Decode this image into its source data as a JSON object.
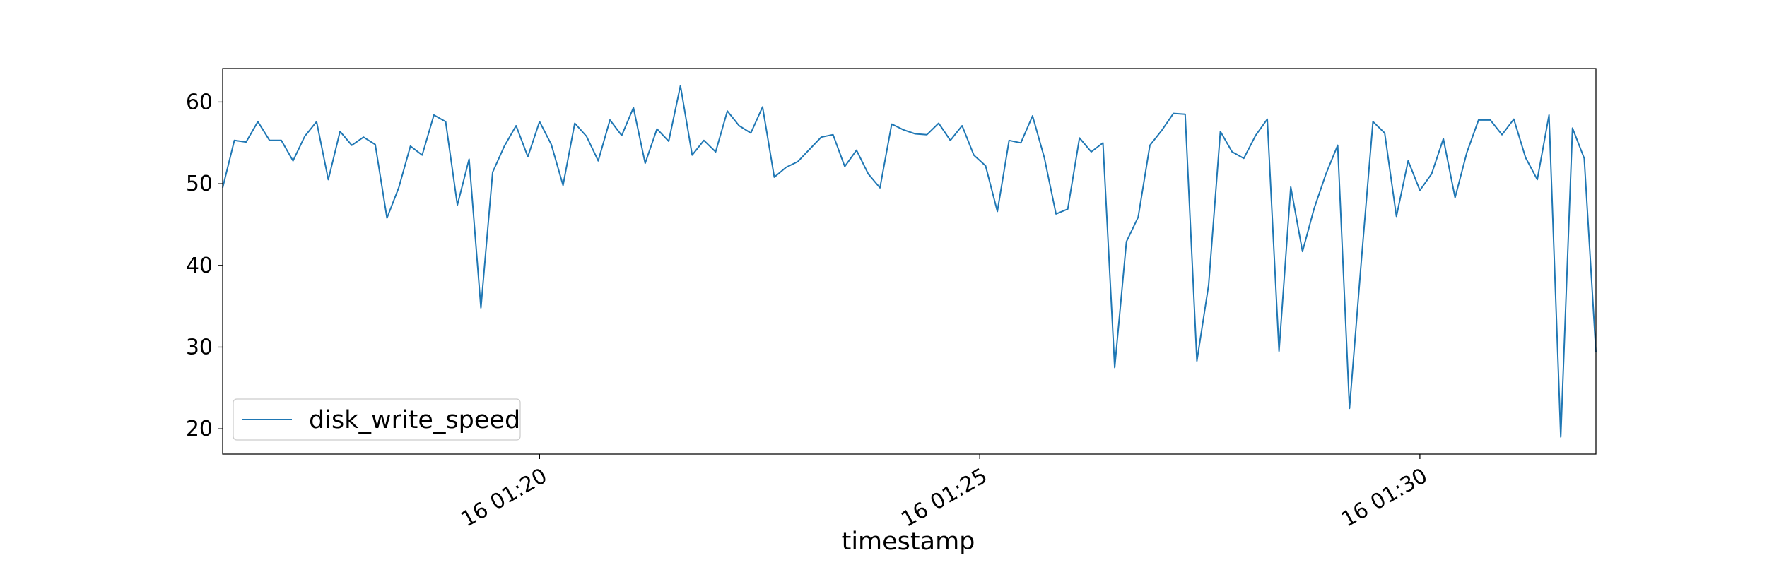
{
  "chart_data": {
    "type": "line",
    "xlabel": "timestamp",
    "x_start": "2024-01-16T01:16:24",
    "x_step_seconds": 8,
    "x_end": "2024-01-16T01:32:00",
    "x_ticks": [
      {
        "label": "16 01:20",
        "value": "2024-01-16T01:20:00"
      },
      {
        "label": "16 01:25",
        "value": "2024-01-16T01:25:00"
      },
      {
        "label": "16 01:30",
        "value": "2024-01-16T01:30:00"
      }
    ],
    "ylim": [
      16.9,
      64.1
    ],
    "y_ticks": [
      20,
      30,
      40,
      50,
      60
    ],
    "legend_position": "lower left",
    "grid": false,
    "series": [
      {
        "name": "disk_write_speed",
        "color": "#1f77b4",
        "values": [
          49.5,
          55.3,
          55.1,
          57.6,
          55.3,
          55.3,
          52.8,
          55.8,
          57.6,
          50.5,
          56.4,
          54.7,
          55.7,
          54.8,
          45.8,
          49.5,
          54.6,
          53.5,
          58.4,
          57.6,
          47.4,
          53.0,
          34.8,
          51.4,
          54.6,
          57.1,
          53.3,
          57.6,
          54.8,
          49.8,
          57.4,
          55.8,
          52.8,
          57.8,
          55.9,
          59.3,
          52.5,
          56.7,
          55.2,
          62.0,
          53.5,
          55.3,
          53.9,
          58.9,
          57.1,
          56.2,
          59.4,
          50.8,
          52.0,
          52.7,
          54.2,
          55.7,
          56.0,
          52.1,
          54.1,
          51.2,
          49.5,
          57.3,
          56.6,
          56.1,
          56.0,
          57.4,
          55.3,
          57.1,
          53.5,
          52.2,
          46.6,
          55.3,
          55.0,
          58.3,
          53.2,
          46.3,
          46.9,
          55.6,
          53.9,
          55.0,
          27.5,
          42.9,
          45.9,
          54.7,
          56.5,
          58.6,
          58.5,
          28.3,
          37.6,
          56.4,
          53.9,
          53.1,
          55.9,
          57.9,
          29.5,
          49.6,
          41.7,
          47.0,
          51.2,
          54.7,
          22.5,
          40.4,
          57.6,
          56.2,
          46.0,
          52.8,
          49.2,
          51.2,
          55.5,
          48.3,
          53.8,
          57.8,
          57.8,
          56.0,
          57.9,
          53.2,
          50.5,
          58.4,
          19.0,
          56.8,
          53.1,
          29.4
        ]
      }
    ]
  }
}
